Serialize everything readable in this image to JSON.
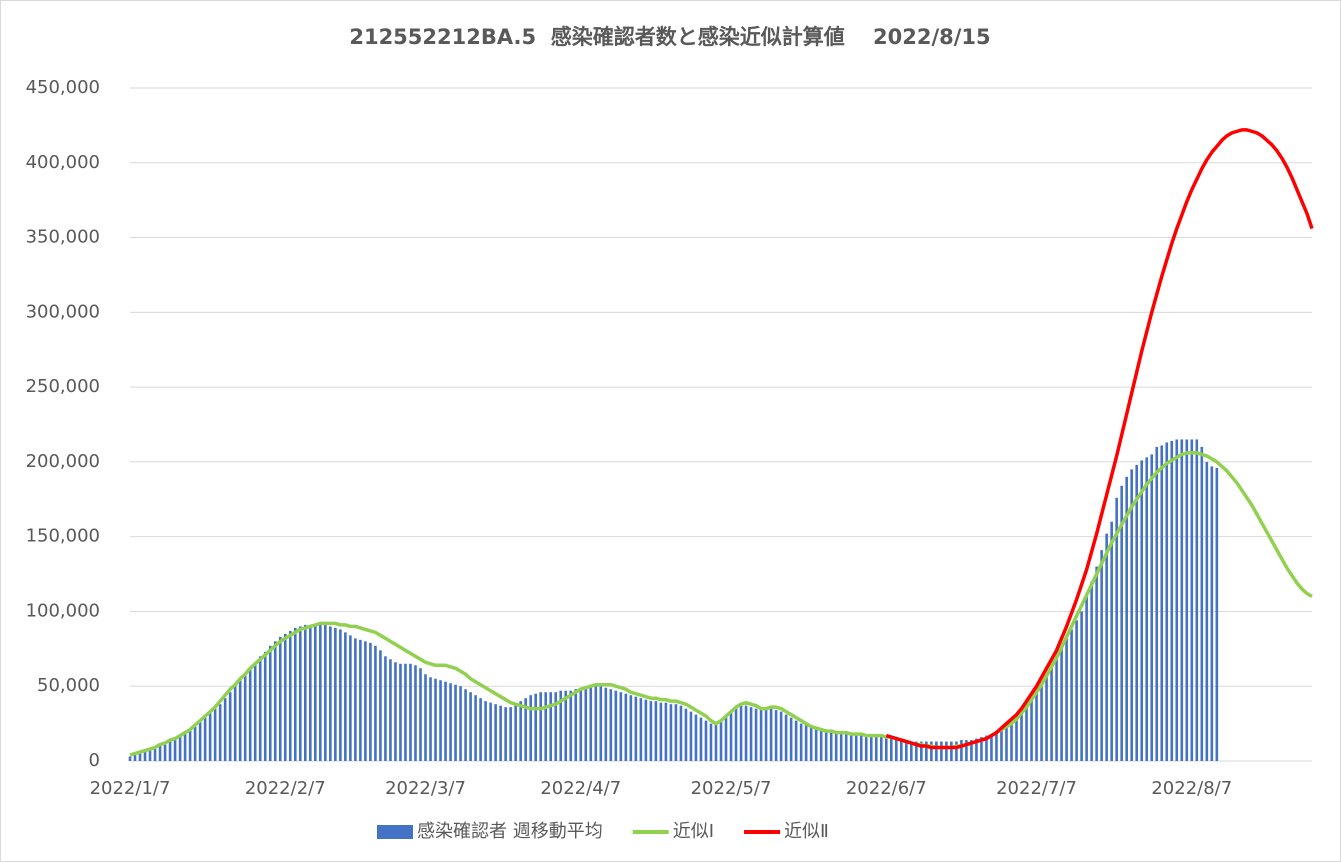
{
  "chart_data": {
    "type": "bar",
    "title": "212552212BA.5  感染確認者数と感染近似計算値　 2022/8/15",
    "categories": [
      "2022/1/7",
      null,
      null,
      null,
      null,
      null,
      null,
      null,
      null,
      null,
      null,
      null,
      null,
      null,
      null,
      null,
      null,
      null,
      null,
      null,
      null,
      null,
      null,
      null,
      null,
      null,
      null,
      null,
      null,
      null,
      null,
      "2022/2/7",
      null,
      null,
      null,
      null,
      null,
      null,
      null,
      null,
      null,
      null,
      null,
      null,
      null,
      null,
      null,
      null,
      null,
      null,
      null,
      null,
      null,
      null,
      null,
      null,
      null,
      null,
      null,
      "2022/3/7",
      null,
      null,
      null,
      null,
      null,
      null,
      null,
      null,
      null,
      null,
      null,
      null,
      null,
      null,
      null,
      null,
      null,
      null,
      null,
      null,
      null,
      null,
      null,
      null,
      null,
      null,
      null,
      null,
      null,
      null,
      "2022/4/7",
      null,
      null,
      null,
      null,
      null,
      null,
      null,
      null,
      null,
      null,
      null,
      null,
      null,
      null,
      null,
      null,
      null,
      null,
      null,
      null,
      null,
      null,
      null,
      null,
      null,
      null,
      null,
      null,
      null,
      "2022/5/7",
      null,
      null,
      null,
      null,
      null,
      null,
      null,
      null,
      null,
      null,
      null,
      null,
      null,
      null,
      null,
      null,
      null,
      null,
      null,
      null,
      null,
      null,
      null,
      null,
      null,
      null,
      null,
      null,
      null,
      null,
      "2022/6/7",
      null,
      null,
      null,
      null,
      null,
      null,
      null,
      null,
      null,
      null,
      null,
      null,
      null,
      null,
      null,
      null,
      null,
      null,
      null,
      null,
      null,
      null,
      null,
      null,
      null,
      null,
      null,
      null,
      null,
      "2022/7/7",
      null,
      null,
      null,
      null,
      null,
      null,
      null,
      null,
      null,
      null,
      null,
      null,
      null,
      null,
      null,
      null,
      null,
      null,
      null,
      null,
      null,
      null,
      null,
      null,
      null,
      null,
      null,
      null,
      null,
      null,
      "2022/8/7",
      null,
      null,
      null,
      null,
      null,
      null,
      null,
      null,
      null,
      null,
      null,
      null,
      null,
      null,
      null,
      null,
      null,
      null,
      null,
      null,
      null,
      null,
      null,
      null
    ],
    "series": [
      {
        "name": "感染確認者 週移動平均",
        "type": "bar",
        "color": "#4472c4",
        "values": [
          3000,
          4000,
          5000,
          6000,
          7000,
          8000,
          10000,
          11000,
          13000,
          15000,
          17000,
          19000,
          21000,
          23000,
          26000,
          29000,
          32000,
          35000,
          38000,
          42000,
          46000,
          50000,
          54000,
          58000,
          62000,
          66000,
          70000,
          73000,
          77000,
          80000,
          83000,
          85000,
          87000,
          89000,
          90000,
          91000,
          91000,
          91000,
          91000,
          91000,
          90000,
          89000,
          88000,
          86000,
          84000,
          82000,
          81000,
          80000,
          79000,
          77000,
          74000,
          70000,
          68000,
          66000,
          65000,
          65000,
          65000,
          64000,
          62000,
          58000,
          56000,
          55000,
          54000,
          53000,
          52000,
          51000,
          50000,
          48000,
          46000,
          44000,
          42000,
          40000,
          39000,
          38000,
          37000,
          36000,
          36000,
          38000,
          40000,
          42000,
          44000,
          45000,
          46000,
          46000,
          46000,
          46000,
          47000,
          47000,
          47000,
          48000,
          49000,
          50000,
          50000,
          50000,
          50000,
          49000,
          48000,
          47000,
          46000,
          45000,
          44000,
          43000,
          42000,
          41000,
          40000,
          40000,
          39000,
          39000,
          38000,
          38000,
          37000,
          35000,
          33000,
          31000,
          29000,
          27000,
          25000,
          25000,
          27000,
          30000,
          33000,
          36000,
          37000,
          37000,
          36000,
          35000,
          35000,
          35000,
          35000,
          34000,
          33000,
          31000,
          29000,
          27000,
          25000,
          24000,
          23000,
          22000,
          21000,
          20000,
          19000,
          19000,
          18000,
          18000,
          18000,
          17000,
          17000,
          17000,
          17000,
          16000,
          16000,
          16000,
          15000,
          14000,
          14000,
          13000,
          13000,
          13000,
          13000,
          13000,
          13000,
          13000,
          13000,
          13000,
          13000,
          13000,
          14000,
          14000,
          14000,
          15000,
          16000,
          17000,
          18000,
          20000,
          22000,
          24000,
          27000,
          30000,
          34000,
          38000,
          43000,
          48000,
          53000,
          58000,
          64000,
          70000,
          76000,
          82000,
          88000,
          94000,
          100000,
          110000,
          120000,
          130000,
          141000,
          152000,
          160000,
          176000,
          184000,
          190000,
          195000,
          198000,
          201000,
          203000,
          205000,
          210000,
          211000,
          213000,
          214000,
          215000,
          215000,
          215000,
          215000,
          215000,
          210000,
          200000,
          197000,
          196000,
          null,
          null,
          null,
          null,
          null,
          null,
          null,
          null,
          null,
          null,
          null,
          null,
          null,
          null,
          null,
          null,
          null,
          null,
          null
        ]
      },
      {
        "name": "近似Ⅰ",
        "type": "line",
        "color": "#92d050",
        "values": [
          4000,
          5000,
          6000,
          7000,
          8000,
          9000,
          11000,
          12000,
          14000,
          15000,
          17000,
          19000,
          21000,
          24000,
          27000,
          30000,
          33000,
          36000,
          40000,
          44000,
          48000,
          51000,
          55000,
          58000,
          62000,
          65000,
          68000,
          71000,
          74000,
          77000,
          80000,
          82000,
          84000,
          86000,
          88000,
          89000,
          90000,
          91000,
          92000,
          92000,
          92000,
          92000,
          91000,
          91000,
          90000,
          90000,
          89000,
          88000,
          87000,
          86000,
          84000,
          82000,
          80000,
          78000,
          76000,
          74000,
          72000,
          70000,
          68000,
          66000,
          65000,
          64000,
          64000,
          64000,
          63000,
          62000,
          60000,
          58000,
          55000,
          53000,
          51000,
          49000,
          47000,
          45000,
          43000,
          41000,
          39000,
          38000,
          37000,
          36000,
          35000,
          35000,
          35000,
          36000,
          37000,
          38000,
          40000,
          42000,
          44000,
          46000,
          48000,
          49000,
          50000,
          51000,
          51000,
          51000,
          51000,
          50000,
          49000,
          48000,
          46000,
          45000,
          44000,
          43000,
          42000,
          42000,
          41000,
          41000,
          40000,
          40000,
          39000,
          38000,
          36000,
          34000,
          32000,
          30000,
          27000,
          25000,
          27000,
          30000,
          33000,
          36000,
          38000,
          39000,
          38000,
          37000,
          35000,
          35000,
          36000,
          36000,
          35000,
          33000,
          31000,
          29000,
          27000,
          25000,
          23000,
          22000,
          21000,
          20000,
          20000,
          19000,
          19000,
          19000,
          18000,
          18000,
          18000,
          17000,
          17000,
          17000,
          17000,
          16000,
          16000,
          15000,
          14000,
          13000,
          12000,
          11000,
          11000,
          10000,
          10000,
          9000,
          9000,
          9000,
          9000,
          10000,
          10000,
          11000,
          12000,
          13000,
          14000,
          15000,
          17000,
          19000,
          21000,
          23000,
          25000,
          28000,
          32000,
          36000,
          41000,
          46000,
          51000,
          57000,
          63000,
          69000,
          76000,
          83000,
          90000,
          97000,
          104000,
          111000,
          118000,
          125000,
          132000,
          139000,
          146000,
          152000,
          158000,
          164000,
          170000,
          175000,
          180000,
          185000,
          189000,
          193000,
          196000,
          199000,
          201000,
          203000,
          205000,
          206000,
          206000,
          206000,
          205000,
          204000,
          202000,
          200000,
          197000,
          194000,
          190000,
          186000,
          181000,
          176000,
          171000,
          165000,
          159000,
          153000,
          147000,
          141000,
          135000,
          129000,
          124000,
          119000,
          115000,
          112000,
          110000
        ]
      },
      {
        "name": "近似Ⅱ",
        "type": "line",
        "color": "#ff0000",
        "values": [
          null,
          null,
          null,
          null,
          null,
          null,
          null,
          null,
          null,
          null,
          null,
          null,
          null,
          null,
          null,
          null,
          null,
          null,
          null,
          null,
          null,
          null,
          null,
          null,
          null,
          null,
          null,
          null,
          null,
          null,
          null,
          null,
          null,
          null,
          null,
          null,
          null,
          null,
          null,
          null,
          null,
          null,
          null,
          null,
          null,
          null,
          null,
          null,
          null,
          null,
          null,
          null,
          null,
          null,
          null,
          null,
          null,
          null,
          null,
          null,
          null,
          null,
          null,
          null,
          null,
          null,
          null,
          null,
          null,
          null,
          null,
          null,
          null,
          null,
          null,
          null,
          null,
          null,
          null,
          null,
          null,
          null,
          null,
          null,
          null,
          null,
          null,
          null,
          null,
          null,
          null,
          null,
          null,
          null,
          null,
          null,
          null,
          null,
          null,
          null,
          null,
          null,
          null,
          null,
          null,
          null,
          null,
          null,
          null,
          null,
          null,
          null,
          null,
          null,
          null,
          null,
          null,
          null,
          null,
          null,
          null,
          null,
          null,
          null,
          null,
          null,
          null,
          null,
          null,
          null,
          null,
          null,
          null,
          null,
          null,
          null,
          null,
          null,
          null,
          null,
          null,
          null,
          null,
          null,
          null,
          null,
          null,
          null,
          null,
          null,
          null,
          17000,
          16000,
          15000,
          14000,
          13000,
          12000,
          11000,
          10000,
          10000,
          9000,
          9000,
          9000,
          9000,
          9000,
          9000,
          10000,
          11000,
          12000,
          13000,
          14000,
          15000,
          17000,
          19000,
          22000,
          25000,
          28000,
          31000,
          35000,
          40000,
          45000,
          50000,
          56000,
          62000,
          68000,
          74000,
          82000,
          90000,
          99000,
          108000,
          118000,
          128000,
          140000,
          152000,
          165000,
          178000,
          191000,
          204000,
          218000,
          232000,
          246000,
          260000,
          274000,
          287000,
          300000,
          312000,
          324000,
          335000,
          346000,
          356000,
          365000,
          374000,
          382000,
          389000,
          396000,
          402000,
          407000,
          411000,
          415000,
          418000,
          420000,
          421000,
          422000,
          422000,
          421000,
          420000,
          418000,
          415000,
          412000,
          408000,
          403000,
          397000,
          390000,
          382000,
          374000,
          366000,
          356000
        ]
      }
    ],
    "ylim": [
      0,
      450000
    ],
    "yticks": [
      0,
      {
        "value": 50000,
        "label": "50,000"
      },
      {
        "value": 100000,
        "label": "100,000"
      },
      {
        "value": 150000,
        "label": "150,000"
      },
      {
        "value": 200000,
        "label": "200,000"
      },
      {
        "value": 250000,
        "label": "250,000"
      },
      {
        "value": 300000,
        "label": "300,000"
      },
      {
        "value": 350000,
        "label": "350,000"
      },
      {
        "value": 400000,
        "label": "400,000"
      },
      {
        "value": 450000,
        "label": "450,000"
      }
    ],
    "grid": true,
    "legend": "bottom"
  }
}
